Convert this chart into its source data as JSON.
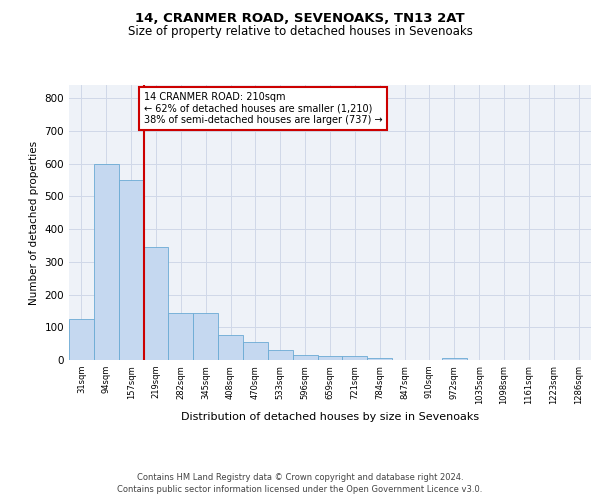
{
  "title1": "14, CRANMER ROAD, SEVENOAKS, TN13 2AT",
  "title2": "Size of property relative to detached houses in Sevenoaks",
  "xlabel": "Distribution of detached houses by size in Sevenoaks",
  "ylabel": "Number of detached properties",
  "categories": [
    "31sqm",
    "94sqm",
    "157sqm",
    "219sqm",
    "282sqm",
    "345sqm",
    "408sqm",
    "470sqm",
    "533sqm",
    "596sqm",
    "659sqm",
    "721sqm",
    "784sqm",
    "847sqm",
    "910sqm",
    "972sqm",
    "1035sqm",
    "1098sqm",
    "1161sqm",
    "1223sqm",
    "1286sqm"
  ],
  "values": [
    125,
    600,
    550,
    345,
    145,
    145,
    75,
    55,
    30,
    15,
    12,
    12,
    5,
    0,
    0,
    5,
    0,
    0,
    0,
    0,
    0
  ],
  "bar_color": "#c5d8f0",
  "bar_edge_color": "#6aaad4",
  "vline_x": 2.5,
  "vline_color": "#cc0000",
  "annotation_lines": [
    "14 CRANMER ROAD: 210sqm",
    "← 62% of detached houses are smaller (1,210)",
    "38% of semi-detached houses are larger (737) →"
  ],
  "annotation_box_color": "#cc0000",
  "ylim": [
    0,
    840
  ],
  "yticks": [
    0,
    100,
    200,
    300,
    400,
    500,
    600,
    700,
    800
  ],
  "grid_color": "#d0d8e8",
  "background_color": "#eef2f8",
  "footer1": "Contains HM Land Registry data © Crown copyright and database right 2024.",
  "footer2": "Contains public sector information licensed under the Open Government Licence v3.0."
}
